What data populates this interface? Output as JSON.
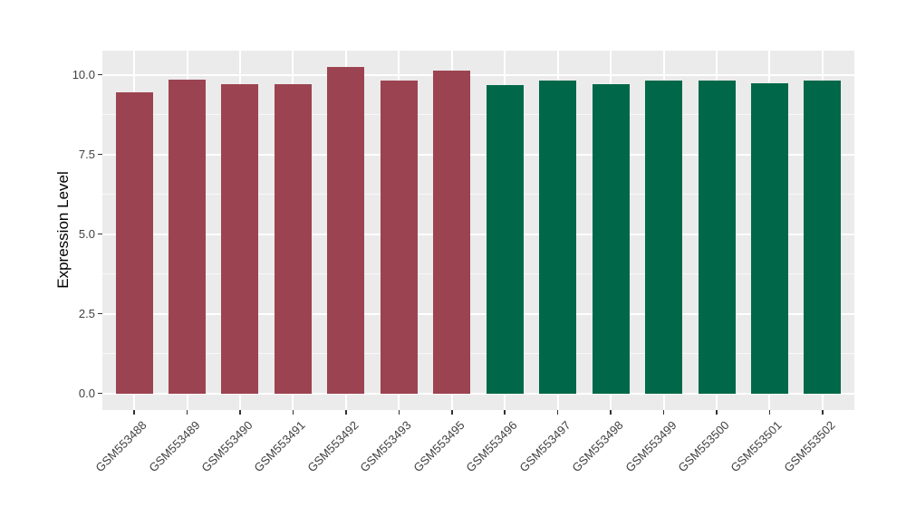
{
  "chart_data": {
    "type": "bar",
    "title": "",
    "xlabel": "",
    "ylabel": "Expression Level",
    "categories": [
      "GSM553488",
      "GSM553489",
      "GSM553490",
      "GSM553491",
      "GSM553492",
      "GSM553493",
      "GSM553495",
      "GSM553496",
      "GSM553497",
      "GSM553498",
      "GSM553499",
      "GSM553500",
      "GSM553501",
      "GSM553502"
    ],
    "values": [
      9.45,
      9.84,
      9.71,
      9.71,
      10.24,
      9.81,
      10.13,
      9.68,
      9.82,
      9.7,
      9.81,
      9.81,
      9.74,
      9.81
    ],
    "bar_colors": [
      "#9C4351",
      "#9C4351",
      "#9C4351",
      "#9C4351",
      "#9C4351",
      "#9C4351",
      "#9C4351",
      "#006848",
      "#006848",
      "#006848",
      "#006848",
      "#006848",
      "#006848",
      "#006848"
    ],
    "group_colors": {
      "left_group_maroon": "#9C4351",
      "right_group_green": "#006848"
    },
    "ylim": [
      -0.51,
      10.76
    ],
    "yticks": {
      "values": [
        0,
        2.5,
        5,
        7.5,
        10
      ],
      "labels": [
        "0.0",
        "2.5",
        "5.0",
        "7.5",
        "10.0"
      ]
    },
    "yminor": [
      1.25,
      3.75,
      6.25,
      8.75
    ],
    "grid": "horizontal major+minor, vertical major at bar centers",
    "legend": "none",
    "panel_bg": "#EBEBEB",
    "grid_color": "#FFFFFF",
    "axis_text_color": "#404040"
  }
}
